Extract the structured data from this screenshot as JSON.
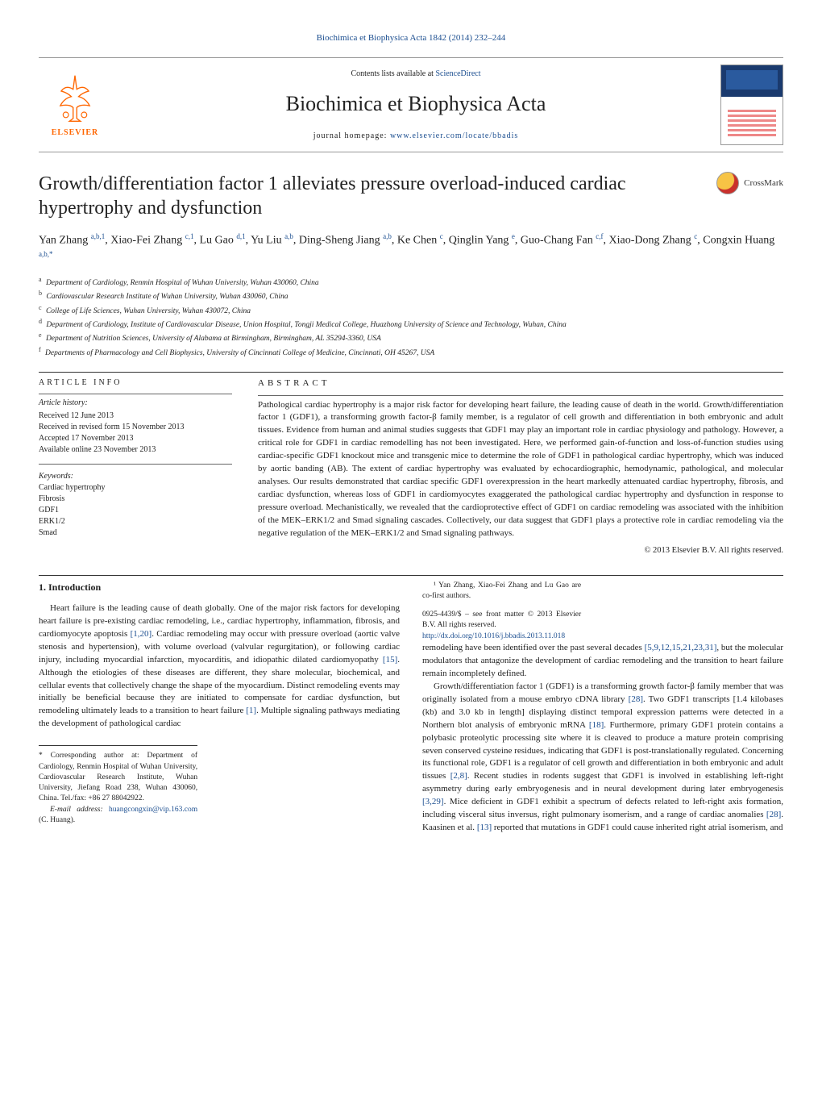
{
  "top_link": "Biochimica et Biophysica Acta 1842 (2014) 232–244",
  "header": {
    "contents_prefix": "Contents lists available at ",
    "contents_link": "ScienceDirect",
    "journal_name": "Biochimica et Biophysica Acta",
    "homepage_prefix": "journal homepage: ",
    "homepage_link": "www.elsevier.com/locate/bbadis",
    "publisher": "ELSEVIER"
  },
  "crossmark_label": "CrossMark",
  "title": "Growth/differentiation factor 1 alleviates pressure overload-induced cardiac hypertrophy and dysfunction",
  "authors_html": "Yan Zhang <sup>a,b,1</sup>, Xiao-Fei Zhang <sup>c,1</sup>, Lu Gao <sup>d,1</sup>, Yu Liu <sup>a,b</sup>, Ding-Sheng Jiang <sup>a,b</sup>, Ke Chen <sup>c</sup>, Qinglin Yang <sup>e</sup>, Guo-Chang Fan <sup>c,f</sup>, Xiao-Dong Zhang <sup>c</sup>, Congxin Huang <sup>a,b,*</sup>",
  "affiliations": [
    {
      "sup": "a",
      "text": "Department of Cardiology, Renmin Hospital of Wuhan University, Wuhan 430060, China"
    },
    {
      "sup": "b",
      "text": "Cardiovascular Research Institute of Wuhan University, Wuhan 430060, China"
    },
    {
      "sup": "c",
      "text": "College of Life Sciences, Wuhan University, Wuhan 430072, China"
    },
    {
      "sup": "d",
      "text": "Department of Cardiology, Institute of Cardiovascular Disease, Union Hospital, Tongji Medical College, Huazhong University of Science and Technology, Wuhan, China"
    },
    {
      "sup": "e",
      "text": "Department of Nutrition Sciences, University of Alabama at Birmingham, Birmingham, AL 35294-3360, USA"
    },
    {
      "sup": "f",
      "text": "Departments of Pharmacology and Cell Biophysics, University of Cincinnati College of Medicine, Cincinnati, OH 45267, USA"
    }
  ],
  "article_info": {
    "heading": "article info",
    "history_label": "Article history:",
    "history": [
      "Received 12 June 2013",
      "Received in revised form 15 November 2013",
      "Accepted 17 November 2013",
      "Available online 23 November 2013"
    ],
    "keywords_label": "Keywords:",
    "keywords": [
      "Cardiac hypertrophy",
      "Fibrosis",
      "GDF1",
      "ERK1/2",
      "Smad"
    ]
  },
  "abstract": {
    "heading": "ABSTRACT",
    "text": "Pathological cardiac hypertrophy is a major risk factor for developing heart failure, the leading cause of death in the world. Growth/differentiation factor 1 (GDF1), a transforming growth factor-β family member, is a regulator of cell growth and differentiation in both embryonic and adult tissues. Evidence from human and animal studies suggests that GDF1 may play an important role in cardiac physiology and pathology. However, a critical role for GDF1 in cardiac remodelling has not been investigated. Here, we performed gain-of-function and loss-of-function studies using cardiac-specific GDF1 knockout mice and transgenic mice to determine the role of GDF1 in pathological cardiac hypertrophy, which was induced by aortic banding (AB). The extent of cardiac hypertrophy was evaluated by echocardiographic, hemodynamic, pathological, and molecular analyses. Our results demonstrated that cardiac specific GDF1 overexpression in the heart markedly attenuated cardiac hypertrophy, fibrosis, and cardiac dysfunction, whereas loss of GDF1 in cardiomyocytes exaggerated the pathological cardiac hypertrophy and dysfunction in response to pressure overload. Mechanistically, we revealed that the cardioprotective effect of GDF1 on cardiac remodeling was associated with the inhibition of the MEK–ERK1/2 and Smad signaling cascades. Collectively, our data suggest that GDF1 plays a protective role in cardiac remodeling via the negative regulation of the MEK–ERK1/2 and Smad signaling pathways.",
    "copyright": "© 2013 Elsevier B.V. All rights reserved."
  },
  "introduction": {
    "heading": "1. Introduction",
    "p1": "Heart failure is the leading cause of death globally. One of the major risk factors for developing heart failure is pre-existing cardiac remodeling, i.e., cardiac hypertrophy, inflammation, fibrosis, and cardiomyocyte apoptosis [1,20]. Cardiac remodeling may occur with pressure overload (aortic valve stenosis and hypertension), with volume overload (valvular regurgitation), or following cardiac injury, including myocardial infarction, myocarditis, and idiopathic dilated cardiomyopathy [15]. Although the etiologies of these diseases are different, they share molecular, biochemical, and cellular events that collectively change the shape of the myocardium. Distinct remodeling events may initially be beneficial because they are initiated to compensate for cardiac dysfunction, but remodeling ultimately leads to a transition to heart failure [1]. Multiple signaling pathways mediating the development of pathological cardiac",
    "p2": "remodeling have been identified over the past several decades [5,9,12,15,21,23,31], but the molecular modulators that antagonize the development of cardiac remodeling and the transition to heart failure remain incompletely defined.",
    "p3": "Growth/differentiation factor 1 (GDF1) is a transforming growth factor-β family member that was originally isolated from a mouse embryo cDNA library [28]. Two GDF1 transcripts [1.4 kilobases (kb) and 3.0 kb in length] displaying distinct temporal expression patterns were detected in a Northern blot analysis of embryonic mRNA [18]. Furthermore, primary GDF1 protein contains a polybasic proteolytic processing site where it is cleaved to produce a mature protein comprising seven conserved cysteine residues, indicating that GDF1 is post-translationally regulated. Concerning its functional role, GDF1 is a regulator of cell growth and differentiation in both embryonic and adult tissues [2,8]. Recent studies in rodents suggest that GDF1 is involved in establishing left-right asymmetry during early embryogenesis and in neural development during later embryogenesis [3,29]. Mice deficient in GDF1 exhibit a spectrum of defects related to left-right axis formation, including visceral situs inversus, right pulmonary isomerism, and a range of cardiac anomalies [28]. Kaasinen et al. [13] reported that mutations in GDF1 could cause inherited right atrial isomerism, and"
  },
  "footnotes": {
    "corr": "* Corresponding author at: Department of Cardiology, Renmin Hospital of Wuhan University, Cardiovascular Research Institute, Wuhan University, Jiefang Road 238, Wuhan 430060, China. Tel./fax: +86 27 88042922.",
    "email_label": "E-mail address: ",
    "email": "huangcongxin@vip.163.com",
    "email_suffix": " (C. Huang).",
    "cofirst": "¹ Yan Zhang, Xiao-Fei Zhang and Lu Gao are co-first authors.",
    "front_matter": "0925-4439/$ – see front matter © 2013 Elsevier B.V. All rights reserved.",
    "doi": "http://dx.doi.org/10.1016/j.bbadis.2013.11.018"
  },
  "colors": {
    "link": "#1a4d8f",
    "elsevier_orange": "#ff6600",
    "text": "#222222",
    "rule": "#333333"
  }
}
